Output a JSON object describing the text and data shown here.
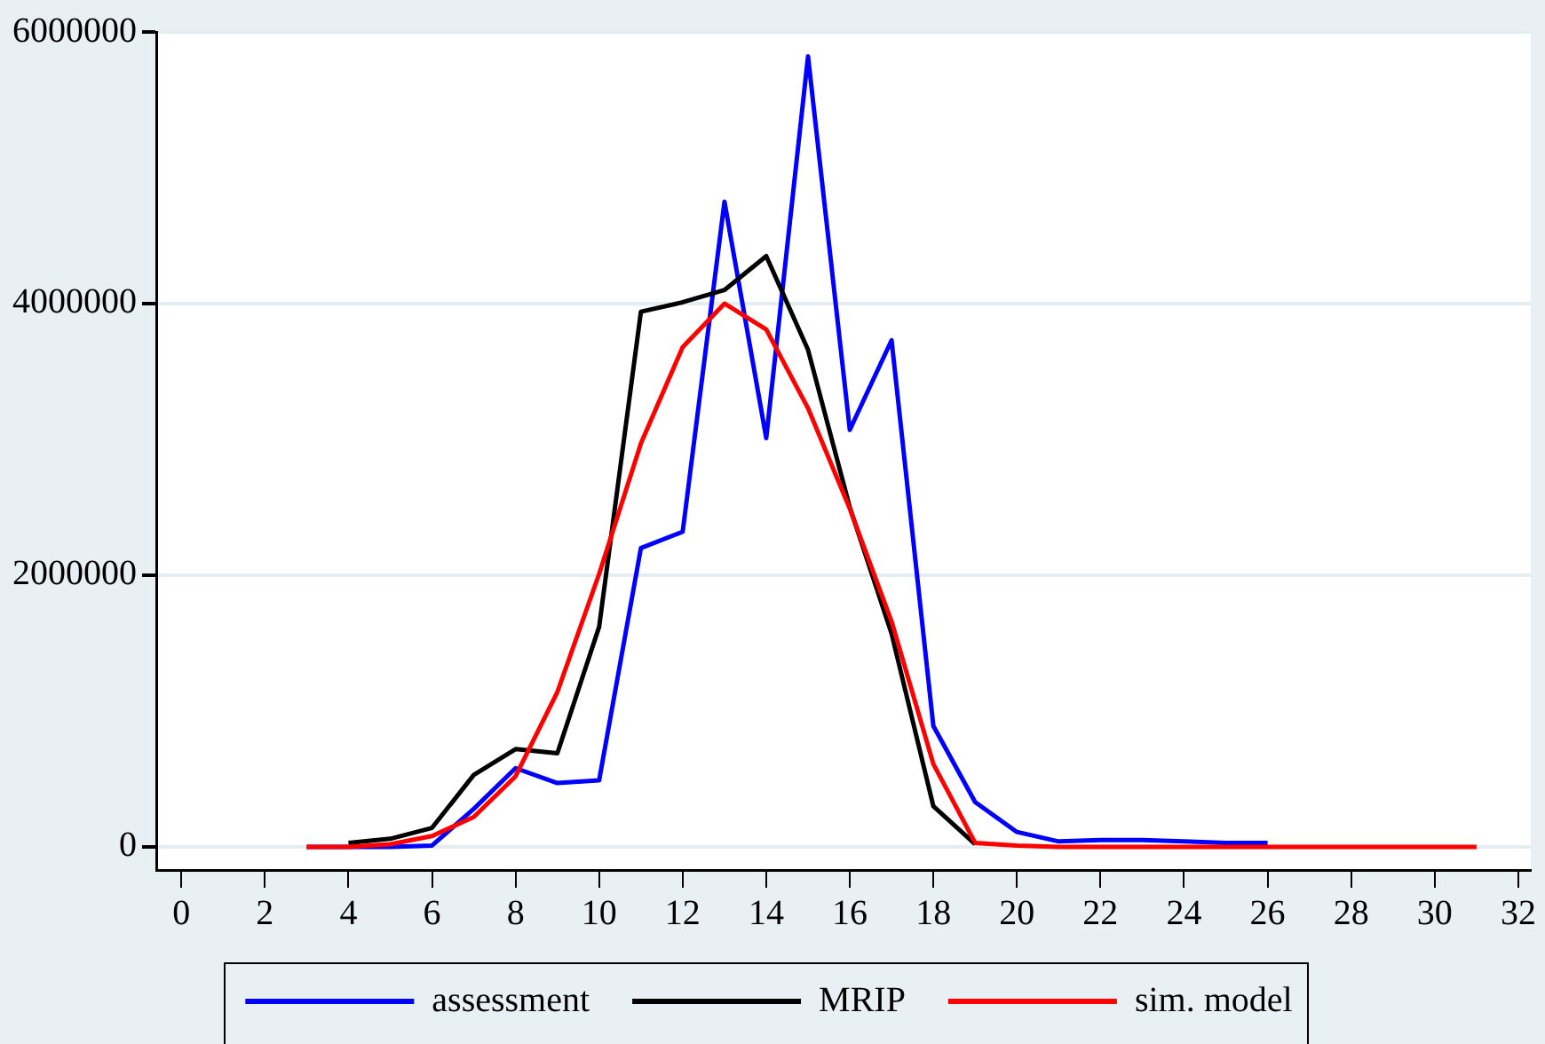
{
  "chart_data": {
    "type": "line",
    "x": [
      3,
      4,
      5,
      6,
      7,
      8,
      9,
      10,
      11,
      12,
      13,
      14,
      15,
      16,
      17,
      18,
      19,
      20,
      21,
      22,
      23,
      24,
      25,
      26,
      27,
      28,
      29,
      30,
      31
    ],
    "series": [
      {
        "name": "assessment",
        "color": "#0000ff",
        "values": [
          0,
          0,
          0,
          10000,
          280000,
          580000,
          470000,
          490000,
          2200000,
          2320000,
          4750000,
          3010000,
          5820000,
          3070000,
          3730000,
          890000,
          330000,
          110000,
          40000,
          50000,
          50000,
          40000,
          30000,
          30000,
          null,
          null,
          null,
          null,
          null
        ]
      },
      {
        "name": "MRIP",
        "color": "#000000",
        "values": [
          null,
          30000,
          60000,
          140000,
          530000,
          720000,
          690000,
          1620000,
          3940000,
          4010000,
          4100000,
          4350000,
          3660000,
          2500000,
          1570000,
          300000,
          20000,
          null,
          null,
          null,
          null,
          null,
          null,
          null,
          null,
          null,
          null,
          null,
          null
        ]
      },
      {
        "name": "sim. model",
        "color": "#ff0000",
        "values": [
          0,
          0,
          20000,
          80000,
          220000,
          520000,
          1140000,
          2010000,
          2970000,
          3680000,
          4000000,
          3810000,
          3230000,
          2490000,
          1660000,
          610000,
          30000,
          10000,
          0,
          0,
          0,
          0,
          0,
          0,
          0,
          0,
          0,
          0,
          0
        ]
      }
    ],
    "xlim": [
      -0.6,
      32.3
    ],
    "xticks": [
      0,
      2,
      4,
      6,
      8,
      10,
      12,
      14,
      16,
      18,
      20,
      22,
      24,
      26,
      28,
      30,
      32
    ],
    "ylim": [
      -170000,
      6000000
    ],
    "yticks": [
      0,
      2000000,
      4000000,
      6000000
    ],
    "grid": "y",
    "legend": "bottom",
    "marker": "none",
    "line_style": "solid"
  }
}
